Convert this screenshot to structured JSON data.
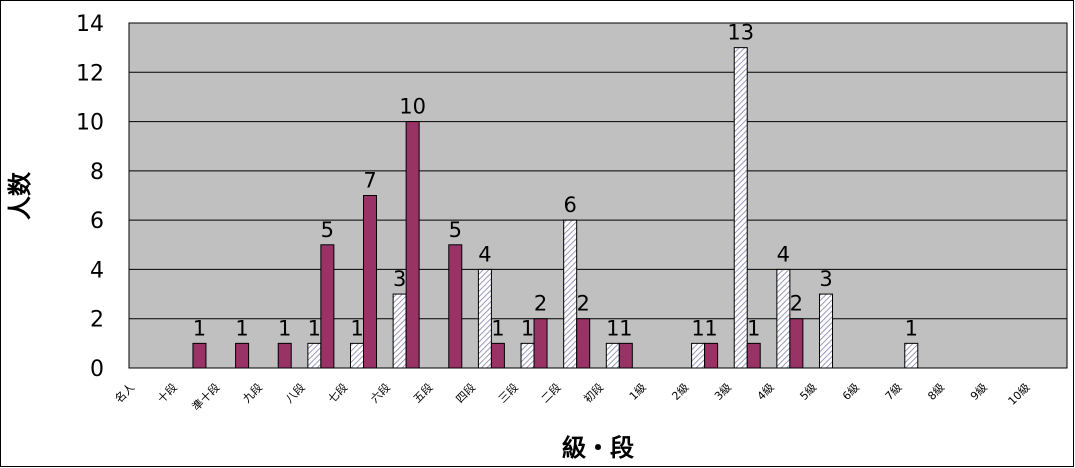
{
  "chart_data": {
    "type": "bar",
    "xlabel": "級・段",
    "ylabel": "人数",
    "ylim": [
      0,
      14
    ],
    "yticks": [
      0,
      2,
      4,
      6,
      8,
      10,
      12,
      14
    ],
    "grid": true,
    "legend": "none",
    "categories": [
      "名人",
      "十段",
      "準十段",
      "九段",
      "八段",
      "七段",
      "六段",
      "五段",
      "四段",
      "三段",
      "二段",
      "初段",
      "1級",
      "2級",
      "3級",
      "4級",
      "5級",
      "6級",
      "7級",
      "8級",
      "9級",
      "10級"
    ],
    "series": [
      {
        "color": "#ccccff",
        "hatched": true,
        "values": [
          0,
          0,
          0,
          0,
          1,
          1,
          3,
          0,
          4,
          1,
          6,
          1,
          0,
          1,
          13,
          4,
          3,
          0,
          1,
          0,
          0,
          0
        ]
      },
      {
        "color": "#993366",
        "hatched": false,
        "values": [
          0,
          1,
          1,
          1,
          5,
          7,
          10,
          5,
          1,
          2,
          2,
          1,
          0,
          1,
          1,
          2,
          0,
          0,
          0,
          0,
          0,
          0
        ]
      }
    ]
  },
  "colors": {
    "plot_bg": "#c0c0c0",
    "grid": "#000000"
  }
}
